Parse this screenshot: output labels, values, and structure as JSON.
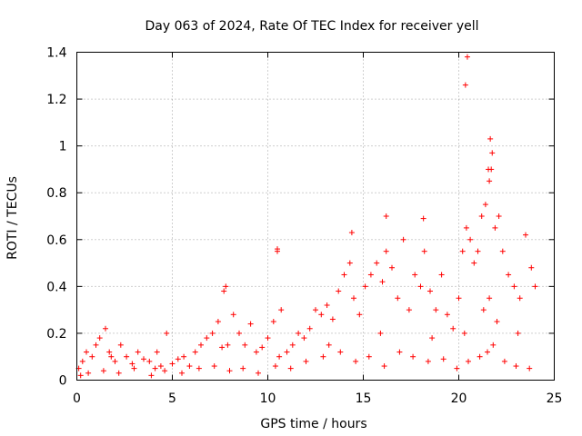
{
  "chart_data": {
    "type": "scatter",
    "title": "Day 063 of 2024, Rate Of TEC Index for receiver yell",
    "xlabel": "GPS time / hours",
    "ylabel": "ROTI / TECUs",
    "xlim": [
      0,
      25
    ],
    "ylim": [
      0,
      1.4
    ],
    "xticks": [
      0,
      5,
      10,
      15,
      20,
      25
    ],
    "xtick_labels": [
      "0",
      "5",
      "10",
      "15",
      "20",
      "25"
    ],
    "yticks": [
      0,
      0.2,
      0.4,
      0.6,
      0.8,
      1.0,
      1.2,
      1.4
    ],
    "ytick_labels": [
      "0",
      "0.2",
      "0.4",
      "0.6",
      "0.8",
      "1",
      "1.2",
      "1.4"
    ],
    "grid": true,
    "marker": "+",
    "series": [
      {
        "name": "ROTI",
        "color": "#ff0000",
        "x": [
          0.1,
          0.3,
          0.5,
          0.8,
          1.0,
          1.2,
          1.5,
          1.7,
          2.0,
          2.3,
          2.6,
          2.9,
          3.2,
          3.5,
          3.8,
          4.1,
          4.4,
          4.7,
          5.0,
          5.3,
          5.6,
          5.9,
          6.2,
          6.5,
          6.8,
          7.1,
          7.4,
          7.7,
          7.9,
          8.2,
          8.5,
          8.8,
          9.1,
          9.4,
          9.7,
          10.0,
          10.3,
          10.5,
          10.7,
          11.0,
          11.3,
          11.6,
          11.9,
          12.2,
          12.5,
          12.8,
          13.1,
          13.4,
          13.7,
          14.0,
          14.3,
          14.5,
          14.8,
          15.1,
          15.4,
          15.7,
          16.0,
          16.2,
          16.5,
          16.8,
          17.1,
          17.4,
          17.7,
          18.0,
          18.2,
          18.5,
          18.8,
          19.1,
          19.4,
          19.7,
          20.0,
          20.2,
          20.4,
          20.6,
          20.8,
          21.0,
          21.2,
          21.4,
          21.6,
          21.7,
          21.9,
          22.1,
          22.3,
          22.6,
          22.9,
          23.2,
          23.5,
          23.8,
          24.0,
          0.2,
          0.6,
          1.4,
          2.2,
          3.0,
          3.9,
          4.6,
          5.5,
          6.4,
          7.2,
          8.0,
          8.7,
          9.5,
          10.4,
          11.2,
          12.0,
          12.9,
          13.8,
          14.6,
          15.3,
          16.1,
          16.9,
          17.6,
          18.4,
          19.2,
          19.9,
          20.5,
          21.1,
          21.5,
          21.8,
          22.4,
          23.0,
          23.7,
          1.8,
          4.2,
          7.6,
          10.6,
          13.2,
          15.9,
          18.6,
          20.3,
          21.3,
          21.6,
          22.0,
          23.1,
          20.35,
          20.45,
          21.65,
          21.75,
          21.55,
          18.15,
          16.2,
          14.4,
          10.5,
          7.8
        ],
        "y": [
          0.05,
          0.08,
          0.12,
          0.1,
          0.15,
          0.18,
          0.22,
          0.12,
          0.08,
          0.15,
          0.1,
          0.07,
          0.12,
          0.09,
          0.08,
          0.05,
          0.06,
          0.2,
          0.07,
          0.09,
          0.1,
          0.06,
          0.12,
          0.15,
          0.18,
          0.2,
          0.25,
          0.38,
          0.15,
          0.28,
          0.2,
          0.15,
          0.24,
          0.12,
          0.14,
          0.18,
          0.25,
          0.55,
          0.3,
          0.12,
          0.15,
          0.2,
          0.18,
          0.22,
          0.3,
          0.28,
          0.32,
          0.26,
          0.38,
          0.45,
          0.5,
          0.35,
          0.28,
          0.4,
          0.45,
          0.5,
          0.42,
          0.55,
          0.48,
          0.35,
          0.6,
          0.3,
          0.45,
          0.4,
          0.55,
          0.38,
          0.3,
          0.45,
          0.28,
          0.22,
          0.35,
          0.55,
          0.65,
          0.6,
          0.5,
          0.55,
          0.7,
          0.75,
          0.85,
          0.9,
          0.65,
          0.7,
          0.55,
          0.45,
          0.4,
          0.35,
          0.62,
          0.48,
          0.4,
          0.02,
          0.03,
          0.04,
          0.03,
          0.05,
          0.02,
          0.04,
          0.03,
          0.05,
          0.06,
          0.04,
          0.05,
          0.03,
          0.06,
          0.05,
          0.08,
          0.1,
          0.12,
          0.08,
          0.1,
          0.06,
          0.12,
          0.1,
          0.08,
          0.09,
          0.05,
          0.08,
          0.1,
          0.12,
          0.15,
          0.08,
          0.06,
          0.05,
          0.1,
          0.12,
          0.14,
          0.1,
          0.15,
          0.2,
          0.18,
          0.2,
          0.3,
          0.35,
          0.25,
          0.2,
          1.26,
          1.38,
          1.03,
          0.97,
          0.9,
          0.69,
          0.7,
          0.63,
          0.56,
          0.4
        ]
      }
    ]
  }
}
